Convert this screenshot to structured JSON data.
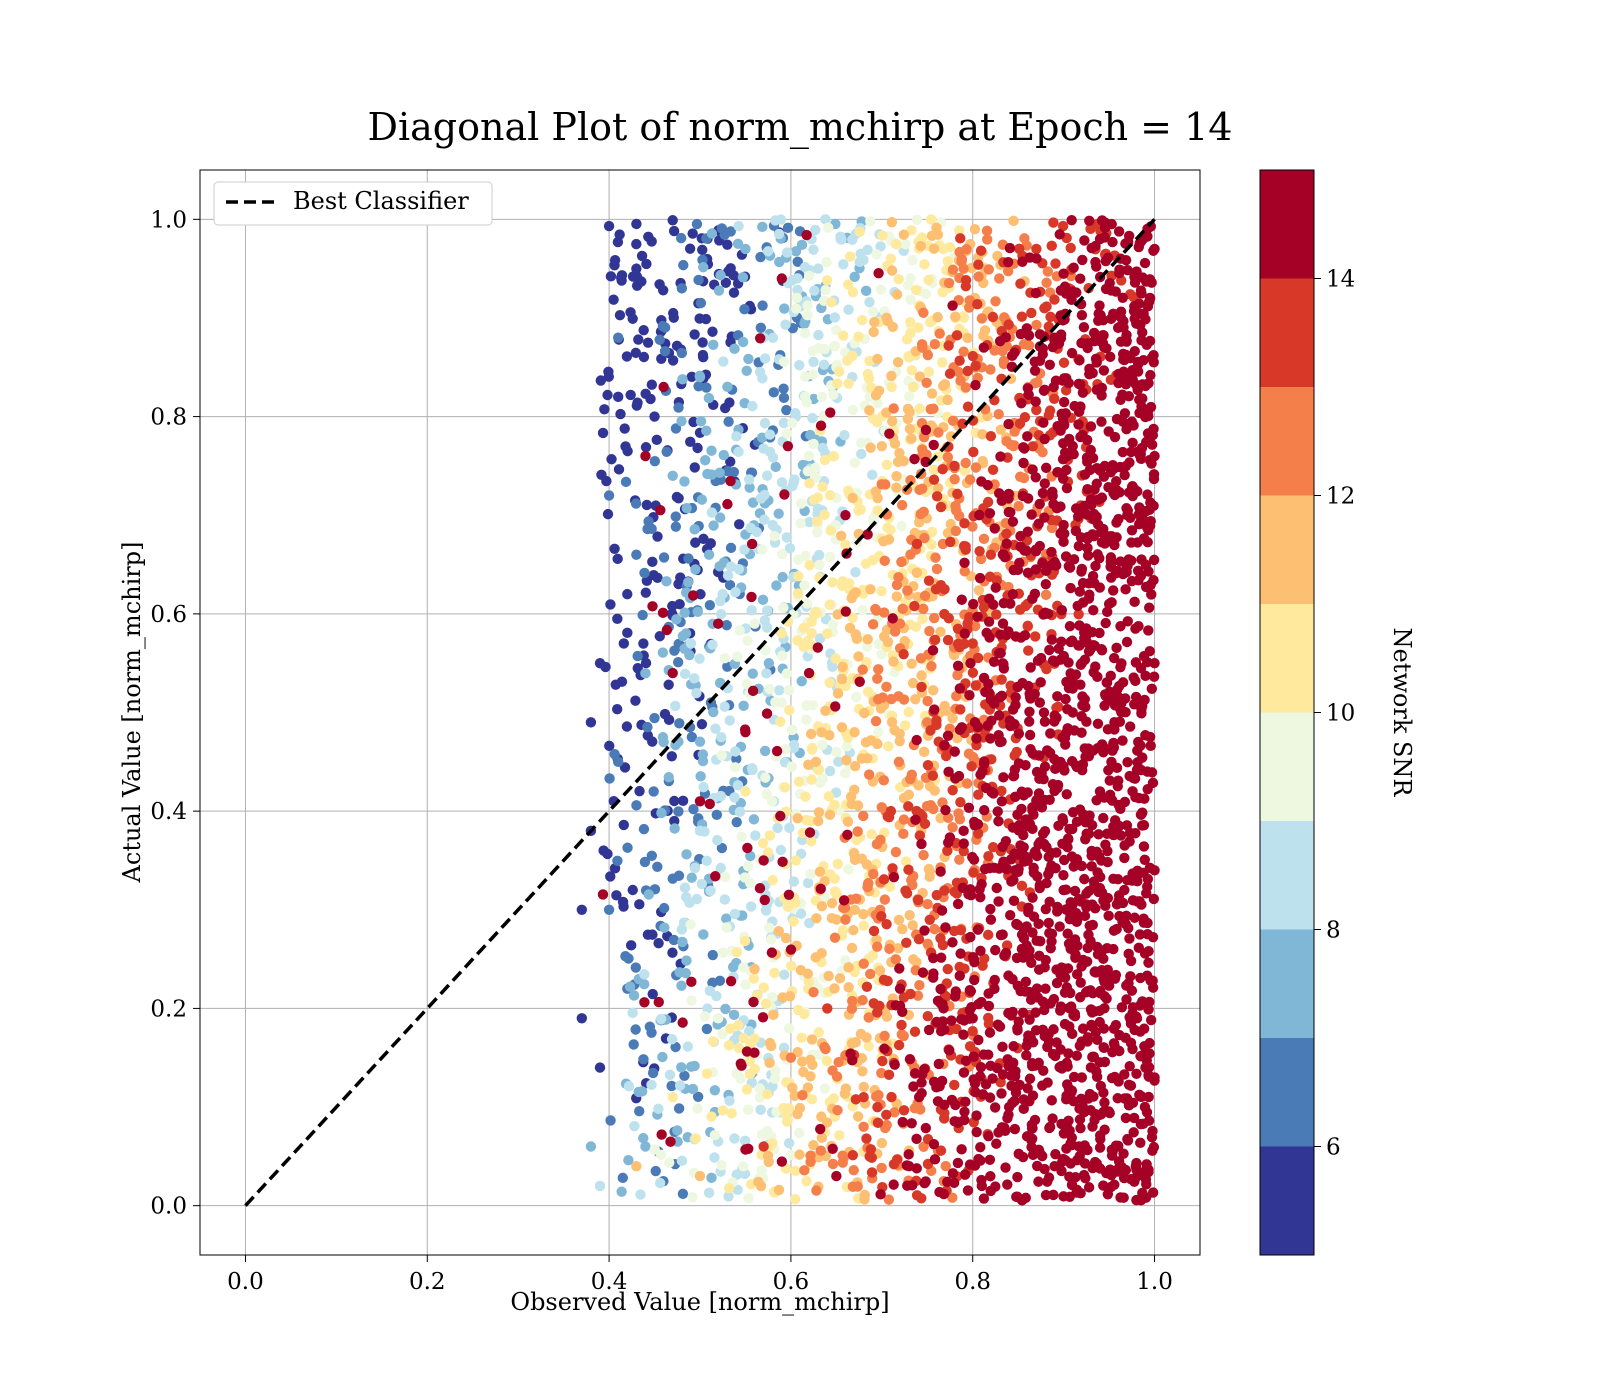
{
  "chart_data": {
    "type": "scatter",
    "title": "Diagonal Plot of norm_mchirp at Epoch = 14",
    "xlabel": "Observed Value [norm_mchirp]",
    "ylabel": "Actual Value [norm_mchirp]",
    "xlim": [
      -0.05,
      1.05
    ],
    "ylim": [
      -0.05,
      1.05
    ],
    "x_ticks": [
      0.0,
      0.2,
      0.4,
      0.6,
      0.8,
      1.0
    ],
    "y_ticks": [
      0.0,
      0.2,
      0.4,
      0.6,
      0.8,
      1.0
    ],
    "x_tick_labels": [
      "0.0",
      "0.2",
      "0.4",
      "0.6",
      "0.8",
      "1.0"
    ],
    "y_tick_labels": [
      "0.0",
      "0.2",
      "0.4",
      "0.6",
      "0.8",
      "1.0"
    ],
    "grid": true,
    "legend": {
      "placement": "upper-left",
      "entries": [
        {
          "label": "Best Classifier",
          "style": "dashed",
          "color": "#000000"
        }
      ]
    },
    "reference_line": {
      "name": "Best Classifier",
      "x": [
        0.0,
        1.0
      ],
      "y": [
        0.0,
        1.0
      ],
      "style": "dashed"
    },
    "point_cloud": {
      "observed_range": [
        0.37,
        1.0
      ],
      "actual_range": [
        0.005,
        1.0
      ],
      "snr_range": [
        5,
        15
      ],
      "points": [
        [
          0.43,
          0.95,
          5.2
        ],
        [
          0.41,
          0.88,
          6.1
        ],
        [
          0.45,
          0.8,
          5.5
        ],
        [
          0.4,
          0.72,
          6.3
        ],
        [
          0.42,
          0.62,
          5.8
        ],
        [
          0.39,
          0.55,
          5.1
        ],
        [
          0.41,
          0.45,
          6.4
        ],
        [
          0.38,
          0.38,
          5.6
        ],
        [
          0.4,
          0.3,
          6.0
        ],
        [
          0.42,
          0.22,
          6.8
        ],
        [
          0.39,
          0.14,
          5.4
        ],
        [
          0.44,
          0.06,
          7.0
        ],
        [
          0.48,
          0.93,
          6.9
        ],
        [
          0.5,
          0.84,
          7.4
        ],
        [
          0.47,
          0.74,
          7.8
        ],
        [
          0.51,
          0.66,
          7.2
        ],
        [
          0.49,
          0.57,
          8.1
        ],
        [
          0.46,
          0.47,
          7.6
        ],
        [
          0.5,
          0.38,
          8.4
        ],
        [
          0.48,
          0.28,
          8.9
        ],
        [
          0.52,
          0.19,
          9.6
        ],
        [
          0.47,
          0.11,
          10.4
        ],
        [
          0.5,
          0.03,
          11.2
        ],
        [
          0.55,
          0.97,
          7.5
        ],
        [
          0.57,
          0.88,
          8.2
        ],
        [
          0.54,
          0.78,
          8.6
        ],
        [
          0.58,
          0.69,
          8.8
        ],
        [
          0.56,
          0.59,
          9.2
        ],
        [
          0.59,
          0.51,
          9.7
        ],
        [
          0.55,
          0.42,
          10.3
        ],
        [
          0.58,
          0.33,
          10.9
        ],
        [
          0.56,
          0.24,
          11.6
        ],
        [
          0.6,
          0.15,
          12.4
        ],
        [
          0.57,
          0.06,
          13.1
        ],
        [
          0.63,
          0.95,
          8.7
        ],
        [
          0.65,
          0.85,
          9.1
        ],
        [
          0.62,
          0.76,
          9.6
        ],
        [
          0.66,
          0.67,
          10.1
        ],
        [
          0.64,
          0.58,
          10.6
        ],
        [
          0.67,
          0.48,
          11.2
        ],
        [
          0.63,
          0.39,
          11.8
        ],
        [
          0.66,
          0.29,
          12.5
        ],
        [
          0.64,
          0.2,
          13.2
        ],
        [
          0.68,
          0.11,
          13.9
        ],
        [
          0.65,
          0.03,
          14.5
        ],
        [
          0.71,
          0.96,
          10.2
        ],
        [
          0.73,
          0.86,
          10.8
        ],
        [
          0.7,
          0.77,
          11.3
        ],
        [
          0.74,
          0.68,
          11.7
        ],
        [
          0.72,
          0.59,
          12.2
        ],
        [
          0.75,
          0.49,
          12.8
        ],
        [
          0.71,
          0.4,
          13.3
        ],
        [
          0.74,
          0.31,
          13.9
        ],
        [
          0.72,
          0.22,
          14.4
        ],
        [
          0.76,
          0.12,
          14.8
        ],
        [
          0.73,
          0.04,
          15.0
        ],
        [
          0.79,
          0.95,
          12.1
        ],
        [
          0.81,
          0.85,
          12.6
        ],
        [
          0.78,
          0.75,
          13.0
        ],
        [
          0.82,
          0.66,
          13.5
        ],
        [
          0.8,
          0.57,
          13.9
        ],
        [
          0.83,
          0.47,
          14.3
        ],
        [
          0.79,
          0.38,
          14.7
        ],
        [
          0.82,
          0.29,
          15.0
        ],
        [
          0.8,
          0.19,
          15.0
        ],
        [
          0.84,
          0.1,
          15.0
        ],
        [
          0.81,
          0.02,
          15.0
        ],
        [
          0.87,
          0.97,
          13.6
        ],
        [
          0.89,
          0.88,
          14.2
        ],
        [
          0.86,
          0.78,
          14.8
        ],
        [
          0.9,
          0.69,
          15.0
        ],
        [
          0.88,
          0.6,
          15.0
        ],
        [
          0.91,
          0.5,
          15.0
        ],
        [
          0.87,
          0.41,
          15.0
        ],
        [
          0.9,
          0.32,
          15.0
        ],
        [
          0.88,
          0.22,
          15.0
        ],
        [
          0.92,
          0.13,
          15.0
        ],
        [
          0.89,
          0.04,
          15.0
        ],
        [
          0.94,
          0.98,
          14.7
        ],
        [
          0.96,
          0.89,
          15.0
        ],
        [
          0.93,
          0.79,
          15.0
        ],
        [
          0.97,
          0.7,
          15.0
        ],
        [
          0.95,
          0.61,
          15.0
        ],
        [
          0.98,
          0.51,
          15.0
        ],
        [
          0.94,
          0.42,
          15.0
        ],
        [
          0.97,
          0.33,
          15.0
        ],
        [
          0.95,
          0.23,
          15.0
        ],
        [
          0.99,
          0.14,
          15.0
        ],
        [
          0.96,
          0.06,
          15.0
        ],
        [
          1.0,
          0.97,
          15.0
        ],
        [
          1.0,
          0.76,
          15.0
        ],
        [
          1.0,
          0.55,
          15.0
        ],
        [
          1.0,
          0.34,
          15.0
        ],
        [
          1.0,
          0.13,
          15.0
        ],
        [
          0.59,
          0.94,
          15.0
        ],
        [
          0.46,
          0.83,
          15.0
        ],
        [
          0.44,
          0.76,
          15.0
        ],
        [
          0.52,
          0.59,
          15.0
        ],
        [
          0.47,
          0.54,
          15.0
        ],
        [
          0.62,
          0.54,
          15.0
        ],
        [
          0.55,
          0.48,
          15.0
        ],
        [
          0.5,
          0.41,
          15.0
        ],
        [
          0.57,
          0.35,
          15.0
        ],
        [
          0.66,
          0.7,
          15.0
        ],
        [
          0.43,
          0.66,
          6.2
        ],
        [
          0.41,
          0.82,
          5.3
        ],
        [
          0.38,
          0.49,
          5.0
        ],
        [
          0.37,
          0.3,
          5.0
        ],
        [
          0.37,
          0.19,
          5.0
        ],
        [
          0.38,
          0.06,
          7.8
        ],
        [
          0.39,
          0.02,
          8.5
        ],
        [
          0.43,
          0.04,
          11.0
        ]
      ]
    },
    "colorbar": {
      "label": "Network SNR",
      "min": 5,
      "max": 15,
      "ticks": [
        6,
        8,
        10,
        12,
        14
      ],
      "tick_labels": [
        "6",
        "8",
        "10",
        "12",
        "14"
      ],
      "bins": [
        {
          "from": 5,
          "to": 6,
          "color": "#313695"
        },
        {
          "from": 6,
          "to": 7,
          "color": "#4a7bb7"
        },
        {
          "from": 7,
          "to": 8,
          "color": "#80b6d6"
        },
        {
          "from": 8,
          "to": 9,
          "color": "#bde1ed"
        },
        {
          "from": 9,
          "to": 10,
          "color": "#eef7df"
        },
        {
          "from": 10,
          "to": 11,
          "color": "#fee99d"
        },
        {
          "from": 11,
          "to": 12,
          "color": "#fdbf71"
        },
        {
          "from": 12,
          "to": 13,
          "color": "#f57f4b"
        },
        {
          "from": 13,
          "to": 14,
          "color": "#d73828"
        },
        {
          "from": 14,
          "to": 15,
          "color": "#a50026"
        }
      ]
    }
  }
}
